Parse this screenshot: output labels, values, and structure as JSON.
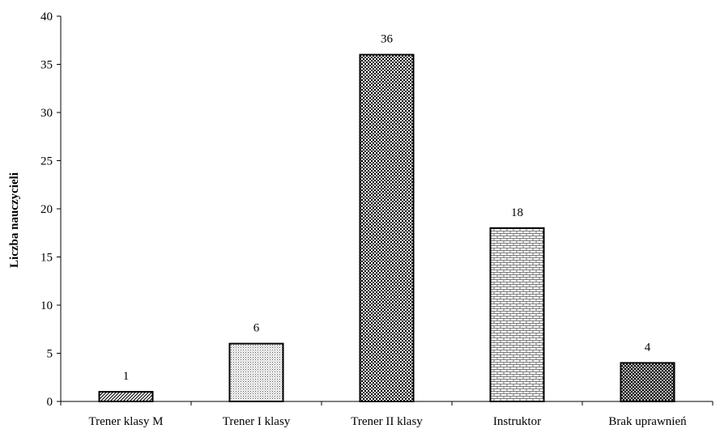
{
  "chart_data": {
    "type": "bar",
    "categories": [
      "Trener klasy M",
      "Trener I klasy",
      "Trener II klasy",
      "Instruktor",
      "Brak uprawnień"
    ],
    "values": [
      1,
      6,
      36,
      18,
      4
    ],
    "data_labels": [
      "1",
      "6",
      "36",
      "18",
      "4"
    ],
    "ylabel": "Liczba nauczycieli",
    "xlabel": "",
    "ylim": [
      0,
      40
    ],
    "yticks": [
      0,
      5,
      10,
      15,
      20,
      25,
      30,
      35,
      40
    ],
    "ytick_labels": [
      "0",
      "5",
      "10",
      "15",
      "20",
      "25",
      "30",
      "35",
      "40"
    ],
    "grid": false,
    "legend": "none",
    "bar_patterns": [
      "diagonal-hatch",
      "fine-dots",
      "checker",
      "brick",
      "crosshatch"
    ],
    "colors": {
      "bar_stroke": "#000000",
      "axis": "#000000",
      "background": "#ffffff"
    }
  }
}
